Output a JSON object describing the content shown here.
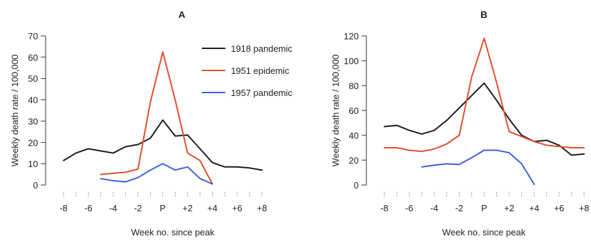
{
  "chart_data": [
    {
      "panel": "A",
      "type": "line",
      "title": "A",
      "xlabel": "Week no. since peak",
      "ylabel": "Weekly death rate / 100,000",
      "x_ticks": [
        -8,
        -7,
        -6,
        -5,
        -4,
        -3,
        -2,
        -1,
        0,
        1,
        2,
        3,
        4,
        5,
        6,
        7,
        8
      ],
      "x_tick_labels": [
        "-8",
        "",
        "-6",
        "",
        "-4",
        "",
        "-2",
        "",
        "P",
        "",
        "+2",
        "",
        "+4",
        "",
        "+6",
        "",
        "+8"
      ],
      "xlim": [
        -8,
        8
      ],
      "ylim": [
        0,
        70
      ],
      "y_ticks": [
        0,
        10,
        20,
        30,
        40,
        50,
        60,
        70
      ],
      "y_tick_labels": [
        "0",
        "10",
        "20",
        "30",
        "40",
        "50",
        "60",
        "70"
      ],
      "legend": "top-right",
      "series": [
        {
          "name": "1918 pandemic",
          "color": "#1a1a1a",
          "points": [
            [
              -8,
              11.5
            ],
            [
              -7,
              15
            ],
            [
              -6,
              17
            ],
            [
              -5,
              16
            ],
            [
              -4,
              15
            ],
            [
              -3,
              18
            ],
            [
              -2,
              19
            ],
            [
              -1,
              22
            ],
            [
              0,
              30.5
            ],
            [
              1,
              23
            ],
            [
              2,
              23.5
            ],
            [
              3,
              17
            ],
            [
              4,
              10.5
            ],
            [
              5,
              8.5
            ],
            [
              6,
              8.5
            ],
            [
              7,
              8
            ],
            [
              8,
              7
            ]
          ]
        },
        {
          "name": "1951 epidemic",
          "color": "#e04e2c",
          "points": [
            [
              -5,
              5
            ],
            [
              -4,
              5.5
            ],
            [
              -3,
              6
            ],
            [
              -2,
              7.5
            ],
            [
              -1,
              39
            ],
            [
              0,
              62.5
            ],
            [
              1,
              40
            ],
            [
              2,
              15
            ],
            [
              3,
              11.5
            ],
            [
              4,
              0.5
            ]
          ]
        },
        {
          "name": "1957 pandemic",
          "color": "#3a5fd9",
          "points": [
            [
              -5,
              3
            ],
            [
              -4,
              2
            ],
            [
              -3,
              1.5
            ],
            [
              -2,
              3.5
            ],
            [
              -1,
              7
            ],
            [
              0,
              10
            ],
            [
              1,
              7
            ],
            [
              2,
              8.5
            ],
            [
              3,
              3
            ],
            [
              4,
              0.5
            ]
          ]
        }
      ]
    },
    {
      "panel": "B",
      "type": "line",
      "title": "B",
      "xlabel": "Week no. since peak",
      "ylabel": "Weekly death rate / 100,000",
      "x_ticks": [
        -8,
        -7,
        -6,
        -5,
        -4,
        -3,
        -2,
        -1,
        0,
        1,
        2,
        3,
        4,
        5,
        6,
        7,
        8
      ],
      "x_tick_labels": [
        "-8",
        "",
        "-6",
        "",
        "-4",
        "",
        "-2",
        "",
        "P",
        "",
        "+2",
        "",
        "+4",
        "",
        "+6",
        "",
        "+8"
      ],
      "xlim": [
        -8,
        8
      ],
      "ylim": [
        0,
        120
      ],
      "y_ticks": [
        0,
        20,
        40,
        60,
        80,
        100,
        120
      ],
      "y_tick_labels": [
        "0",
        "20",
        "40",
        "60",
        "80",
        "100",
        "120"
      ],
      "series": [
        {
          "name": "1918 pandemic",
          "color": "#1a1a1a",
          "points": [
            [
              -8,
              47
            ],
            [
              -7,
              48
            ],
            [
              -6,
              44
            ],
            [
              -5,
              41
            ],
            [
              -4,
              44
            ],
            [
              -3,
              52
            ],
            [
              -2,
              62
            ],
            [
              -1,
              72
            ],
            [
              0,
              82
            ],
            [
              1,
              68
            ],
            [
              2,
              53
            ],
            [
              3,
              40
            ],
            [
              4,
              35
            ],
            [
              5,
              36
            ],
            [
              6,
              32
            ],
            [
              7,
              24
            ],
            [
              8,
              25
            ]
          ]
        },
        {
          "name": "1951 epidemic",
          "color": "#e04e2c",
          "points": [
            [
              -8,
              30
            ],
            [
              -7,
              30
            ],
            [
              -6,
              28
            ],
            [
              -5,
              27
            ],
            [
              -4,
              29
            ],
            [
              -3,
              33
            ],
            [
              -2,
              40
            ],
            [
              -1,
              87
            ],
            [
              0,
              118
            ],
            [
              1,
              82
            ],
            [
              2,
              43
            ],
            [
              3,
              39
            ],
            [
              4,
              35
            ],
            [
              5,
              32
            ],
            [
              6,
              31
            ],
            [
              7,
              30
            ],
            [
              8,
              30
            ]
          ]
        },
        {
          "name": "1957 pandemic",
          "color": "#3a5fd9",
          "points": [
            [
              -5,
              14.5
            ],
            [
              -4,
              16
            ],
            [
              -3,
              17
            ],
            [
              -2,
              16.5
            ],
            [
              -1,
              22
            ],
            [
              0,
              28
            ],
            [
              1,
              28
            ],
            [
              2,
              26
            ],
            [
              3,
              17
            ],
            [
              4,
              0.5
            ]
          ]
        }
      ]
    }
  ]
}
